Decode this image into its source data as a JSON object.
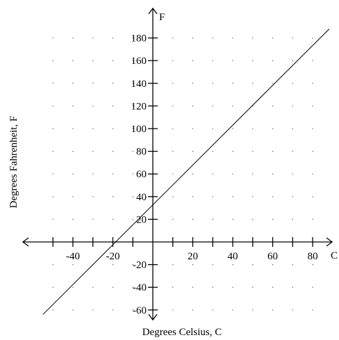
{
  "chart_data": {
    "type": "line",
    "title": "",
    "xlabel": "Degrees Celsius, C",
    "ylabel": "Degrees Fahrenheit, F",
    "x_axis_letter": "C",
    "y_axis_letter": "F",
    "xlim": [
      -60,
      90
    ],
    "ylim": [
      -70,
      190
    ],
    "x_ticks": [
      -50,
      -40,
      -30,
      -20,
      -10,
      10,
      20,
      30,
      40,
      50,
      60,
      70,
      80
    ],
    "x_tick_labels": [
      {
        "value": -40,
        "label": "-40"
      },
      {
        "value": -20,
        "label": "-20"
      },
      {
        "value": 20,
        "label": "20"
      },
      {
        "value": 40,
        "label": "40"
      },
      {
        "value": 60,
        "label": "60"
      },
      {
        "value": 80,
        "label": "80"
      }
    ],
    "y_ticks": [
      -60,
      -40,
      -20,
      20,
      40,
      60,
      80,
      100,
      120,
      140,
      160,
      180
    ],
    "y_tick_labels": [
      {
        "value": -60,
        "label": "-60"
      },
      {
        "value": -40,
        "label": "-40"
      },
      {
        "value": -20,
        "label": "-20"
      },
      {
        "value": 20,
        "label": "20"
      },
      {
        "value": 40,
        "label": "40"
      },
      {
        "value": 60,
        "label": "60"
      },
      {
        "value": 80,
        "label": "80"
      },
      {
        "value": 100,
        "label": "100"
      },
      {
        "value": 120,
        "label": "120"
      },
      {
        "value": 140,
        "label": "140"
      },
      {
        "value": 160,
        "label": "160"
      },
      {
        "value": 180,
        "label": "180"
      }
    ],
    "grid": "dotted",
    "grid_x": [
      -50,
      -40,
      -30,
      -20,
      -10,
      10,
      20,
      30,
      40,
      50,
      60,
      70,
      80
    ],
    "grid_y": [
      -60,
      -40,
      -20,
      20,
      40,
      60,
      80,
      100,
      120,
      140,
      160,
      180
    ],
    "series": [
      {
        "x": [
          -55,
          88.3
        ],
        "y": [
          -64,
          188
        ]
      }
    ]
  }
}
